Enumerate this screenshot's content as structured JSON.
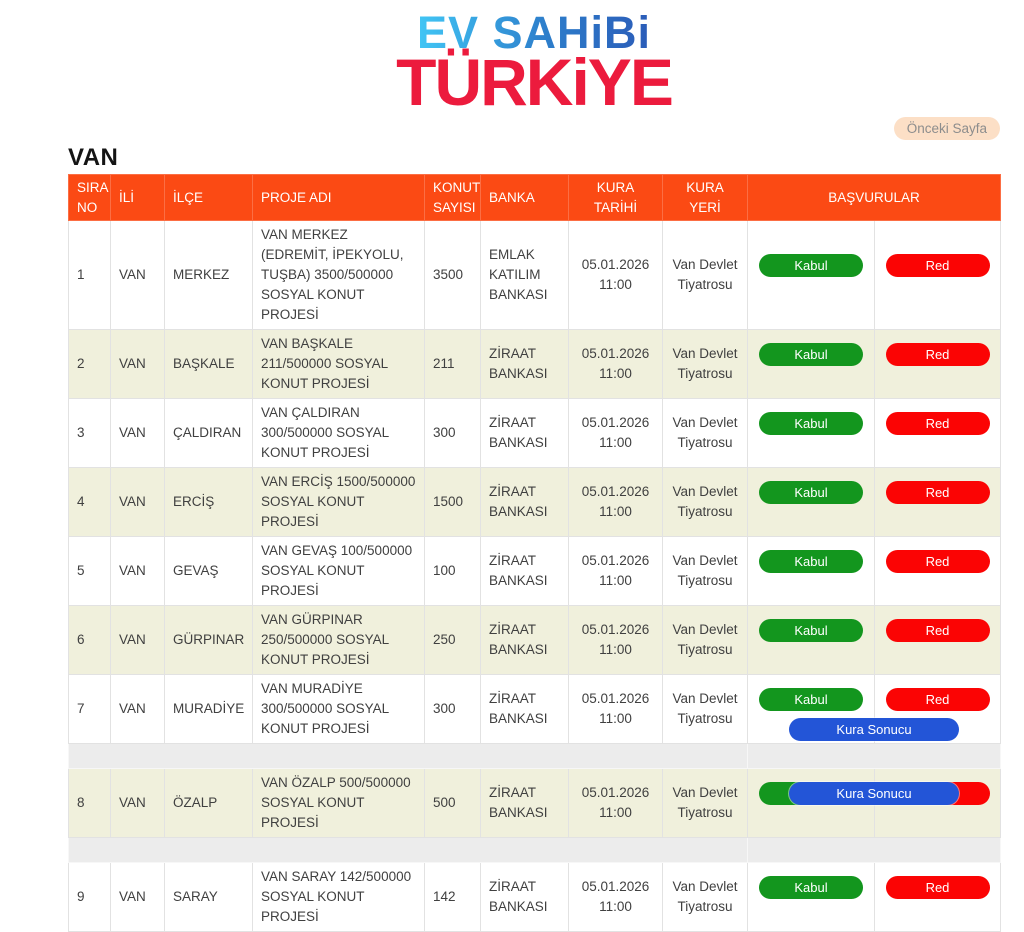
{
  "logo": {
    "line1": "EV SAHiBi",
    "line2": "TÜRKiYE"
  },
  "previous_page_label": "Önceki Sayfa",
  "page_title": "VAN",
  "table": {
    "headers": [
      "SIRA NO",
      "İLİ",
      "İLÇE",
      "PROJE ADI",
      "KONUT SAYISI",
      "BANKA",
      "KURA TARİHİ",
      "KURA YERİ",
      "BAŞVURULAR"
    ],
    "buttons": {
      "accept": "Kabul",
      "reject": "Red",
      "result": "Kura Sonucu"
    },
    "rows": [
      {
        "no": "1",
        "il": "VAN",
        "ilce": "MERKEZ",
        "proje": "VAN MERKEZ (EDREMİT, İPEKYOLU, TUŞBA) 3500/500000 SOSYAL KONUT PROJESİ",
        "konut": "3500",
        "banka": "EMLAK KATILIM BANKASI",
        "tarih": "05.01.2026 11:00",
        "yer": "Van Devlet Tiyatrosu",
        "kura": null,
        "spacer_after": false
      },
      {
        "no": "2",
        "il": "VAN",
        "ilce": "BAŞKALE",
        "proje": "VAN BAŞKALE 211/500000 SOSYAL KONUT PROJESİ",
        "konut": "211",
        "banka": "ZİRAAT BANKASI",
        "tarih": "05.01.2026 11:00",
        "yer": "Van Devlet Tiyatrosu",
        "kura": null,
        "spacer_after": false
      },
      {
        "no": "3",
        "il": "VAN",
        "ilce": "ÇALDIRAN",
        "proje": "VAN ÇALDIRAN 300/500000 SOSYAL KONUT PROJESİ",
        "konut": "300",
        "banka": "ZİRAAT BANKASI",
        "tarih": "05.01.2026 11:00",
        "yer": "Van Devlet Tiyatrosu",
        "kura": null,
        "spacer_after": false
      },
      {
        "no": "4",
        "il": "VAN",
        "ilce": "ERCİŞ",
        "proje": "VAN ERCİŞ 1500/500000 SOSYAL KONUT PROJESİ",
        "konut": "1500",
        "banka": "ZİRAAT BANKASI",
        "tarih": "05.01.2026 11:00",
        "yer": "Van Devlet Tiyatrosu",
        "kura": null,
        "spacer_after": false
      },
      {
        "no": "5",
        "il": "VAN",
        "ilce": "GEVAŞ",
        "proje": "VAN GEVAŞ 100/500000 SOSYAL KONUT PROJESİ",
        "konut": "100",
        "banka": "ZİRAAT BANKASI",
        "tarih": "05.01.2026 11:00",
        "yer": "Van Devlet Tiyatrosu",
        "kura": null,
        "spacer_after": false
      },
      {
        "no": "6",
        "il": "VAN",
        "ilce": "GÜRPINAR",
        "proje": "VAN GÜRPINAR 250/500000 SOSYAL KONUT PROJESİ",
        "konut": "250",
        "banka": "ZİRAAT BANKASI",
        "tarih": "05.01.2026 11:00",
        "yer": "Van Devlet Tiyatrosu",
        "kura": null,
        "spacer_after": false
      },
      {
        "no": "7",
        "il": "VAN",
        "ilce": "MURADİYE",
        "proje": "VAN MURADİYE 300/500000 SOSYAL KONUT PROJESİ",
        "konut": "300",
        "banka": "ZİRAAT BANKASI",
        "tarih": "05.01.2026 11:00",
        "yer": "Van Devlet Tiyatrosu",
        "kura": "below",
        "spacer_after": true
      },
      {
        "no": "8",
        "il": "VAN",
        "ilce": "ÖZALP",
        "proje": "VAN ÖZALP 500/500000 SOSYAL KONUT PROJESİ",
        "konut": "500",
        "banka": "ZİRAAT BANKASI",
        "tarih": "05.01.2026 11:00",
        "yer": "Van Devlet Tiyatrosu",
        "kura": "overlap",
        "spacer_after": true
      },
      {
        "no": "9",
        "il": "VAN",
        "ilce": "SARAY",
        "proje": "VAN SARAY 142/500000 SOSYAL KONUT PROJESİ",
        "konut": "142",
        "banka": "ZİRAAT BANKASI",
        "tarih": "05.01.2026 11:00",
        "yer": "Van Devlet Tiyatrosu",
        "kura": null,
        "spacer_after": false
      }
    ]
  },
  "colors": {
    "header_bg": "#fb4a14",
    "row_alt_bg": "#f0f0dc",
    "spacer_bg": "#ececec",
    "accept_green": "#13961e",
    "reject_red": "#fb0404",
    "result_blue": "#2355d7",
    "prev_button_bg": "#fcdfc6",
    "logo_blue_start": "#41c6f5",
    "logo_blue_end": "#2b5cb8",
    "logo_red": "#ec1b3d"
  }
}
